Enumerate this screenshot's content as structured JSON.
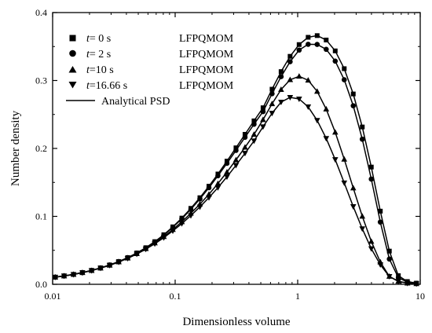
{
  "chart_data": {
    "type": "line",
    "title": "",
    "xlabel": "Dimensionless volume",
    "ylabel": "Number density",
    "xscale": "log",
    "xlim": [
      0.01,
      10
    ],
    "ylim": [
      0,
      0.4
    ],
    "x_ticks": [
      0.01,
      0.1,
      1,
      10
    ],
    "x_tick_labels": [
      "0.01",
      "0.1",
      "1",
      "10"
    ],
    "y_ticks": [
      0,
      0.1,
      0.2,
      0.3,
      0.4
    ],
    "y_tick_labels": [
      "0.0",
      "0.1",
      "0.2",
      "0.3",
      "0.4"
    ],
    "grid": false,
    "legend_position": "top-left",
    "x": [
      0.0105,
      0.0124,
      0.0148,
      0.0175,
      0.0208,
      0.0246,
      0.0292,
      0.0346,
      0.041,
      0.0486,
      0.0576,
      0.0682,
      0.0808,
      0.0957,
      0.1134,
      0.1343,
      0.1592,
      0.1886,
      0.2234,
      0.2647,
      0.3136,
      0.3716,
      0.4402,
      0.5215,
      0.6179,
      0.7321,
      0.8673,
      1.0275,
      1.2174,
      1.4422,
      1.7087,
      2.0244,
      2.3984,
      2.8414,
      3.3664,
      3.9883,
      4.7251,
      5.5981,
      6.6323,
      7.8575,
      9.3092
    ],
    "series": [
      {
        "name": "t= 0 s    LFPQMOM",
        "marker": "square",
        "values": [
          0.0105,
          0.0124,
          0.0146,
          0.0173,
          0.0205,
          0.0242,
          0.0285,
          0.0335,
          0.0393,
          0.0461,
          0.0539,
          0.0628,
          0.073,
          0.0846,
          0.0975,
          0.1118,
          0.1275,
          0.1444,
          0.1624,
          0.1813,
          0.2009,
          0.2208,
          0.2406,
          0.2599,
          0.2872,
          0.3131,
          0.3356,
          0.3529,
          0.3636,
          0.3661,
          0.3596,
          0.3436,
          0.3174,
          0.2802,
          0.2316,
          0.1726,
          0.1077,
          0.0489,
          0.0127,
          0.0041,
          0.0017
        ]
      },
      {
        "name": "t= 2 s    LFPQMOM",
        "marker": "circle",
        "values": [
          0.0105,
          0.0124,
          0.0146,
          0.0173,
          0.0204,
          0.0241,
          0.0284,
          0.0334,
          0.0392,
          0.0459,
          0.0536,
          0.0624,
          0.0724,
          0.0838,
          0.0964,
          0.1104,
          0.1257,
          0.1422,
          0.1598,
          0.1781,
          0.1971,
          0.2164,
          0.2356,
          0.2542,
          0.2806,
          0.3057,
          0.3277,
          0.3448,
          0.3533,
          0.3531,
          0.3459,
          0.3285,
          0.3011,
          0.2628,
          0.2136,
          0.1549,
          0.0916,
          0.0372,
          0.0098,
          0.0032,
          0.0013
        ]
      },
      {
        "name": "t=10 s    LFPQMOM",
        "marker": "triangle-up",
        "values": [
          0.0105,
          0.0123,
          0.0146,
          0.0172,
          0.0203,
          0.0239,
          0.0281,
          0.033,
          0.0386,
          0.0451,
          0.0525,
          0.0608,
          0.0702,
          0.0806,
          0.0921,
          0.1046,
          0.118,
          0.1325,
          0.1483,
          0.1652,
          0.1831,
          0.2017,
          0.2206,
          0.2423,
          0.2657,
          0.2867,
          0.3011,
          0.3062,
          0.3004,
          0.2839,
          0.2579,
          0.2239,
          0.1841,
          0.1417,
          0.1001,
          0.0631,
          0.0328,
          0.0117,
          0.0045,
          0.0018,
          0.0008
        ]
      },
      {
        "name": "t=16.66 s LFPQMOM",
        "marker": "triangle-down",
        "values": [
          0.0105,
          0.0123,
          0.0145,
          0.0171,
          0.0202,
          0.0238,
          0.0279,
          0.0327,
          0.0382,
          0.0445,
          0.0517,
          0.0597,
          0.0687,
          0.0786,
          0.0894,
          0.1012,
          0.1139,
          0.1276,
          0.1423,
          0.1582,
          0.1752,
          0.1929,
          0.2111,
          0.2319,
          0.2519,
          0.2682,
          0.2752,
          0.2728,
          0.2612,
          0.2413,
          0.2148,
          0.1836,
          0.1493,
          0.1144,
          0.0818,
          0.0524,
          0.0289,
          0.0115,
          0.0042,
          0.0016,
          0.0007
        ]
      },
      {
        "name": "Analytical PSD",
        "marker": "line"
      }
    ],
    "legend": [
      {
        "t_prefix": "t",
        "t_value": "= 0 s",
        "method": "LFPQMOM",
        "marker": "square"
      },
      {
        "t_prefix": "t",
        "t_value": "= 2 s",
        "method": "LFPQMOM",
        "marker": "circle"
      },
      {
        "t_prefix": "t",
        "t_value": "=10 s",
        "method": "LFPQMOM",
        "marker": "triangle-up"
      },
      {
        "t_prefix": "t",
        "t_value": "=16.66 s",
        "method": "LFPQMOM",
        "marker": "triangle-down"
      },
      {
        "label": "Analytical PSD",
        "marker": "line"
      }
    ]
  }
}
